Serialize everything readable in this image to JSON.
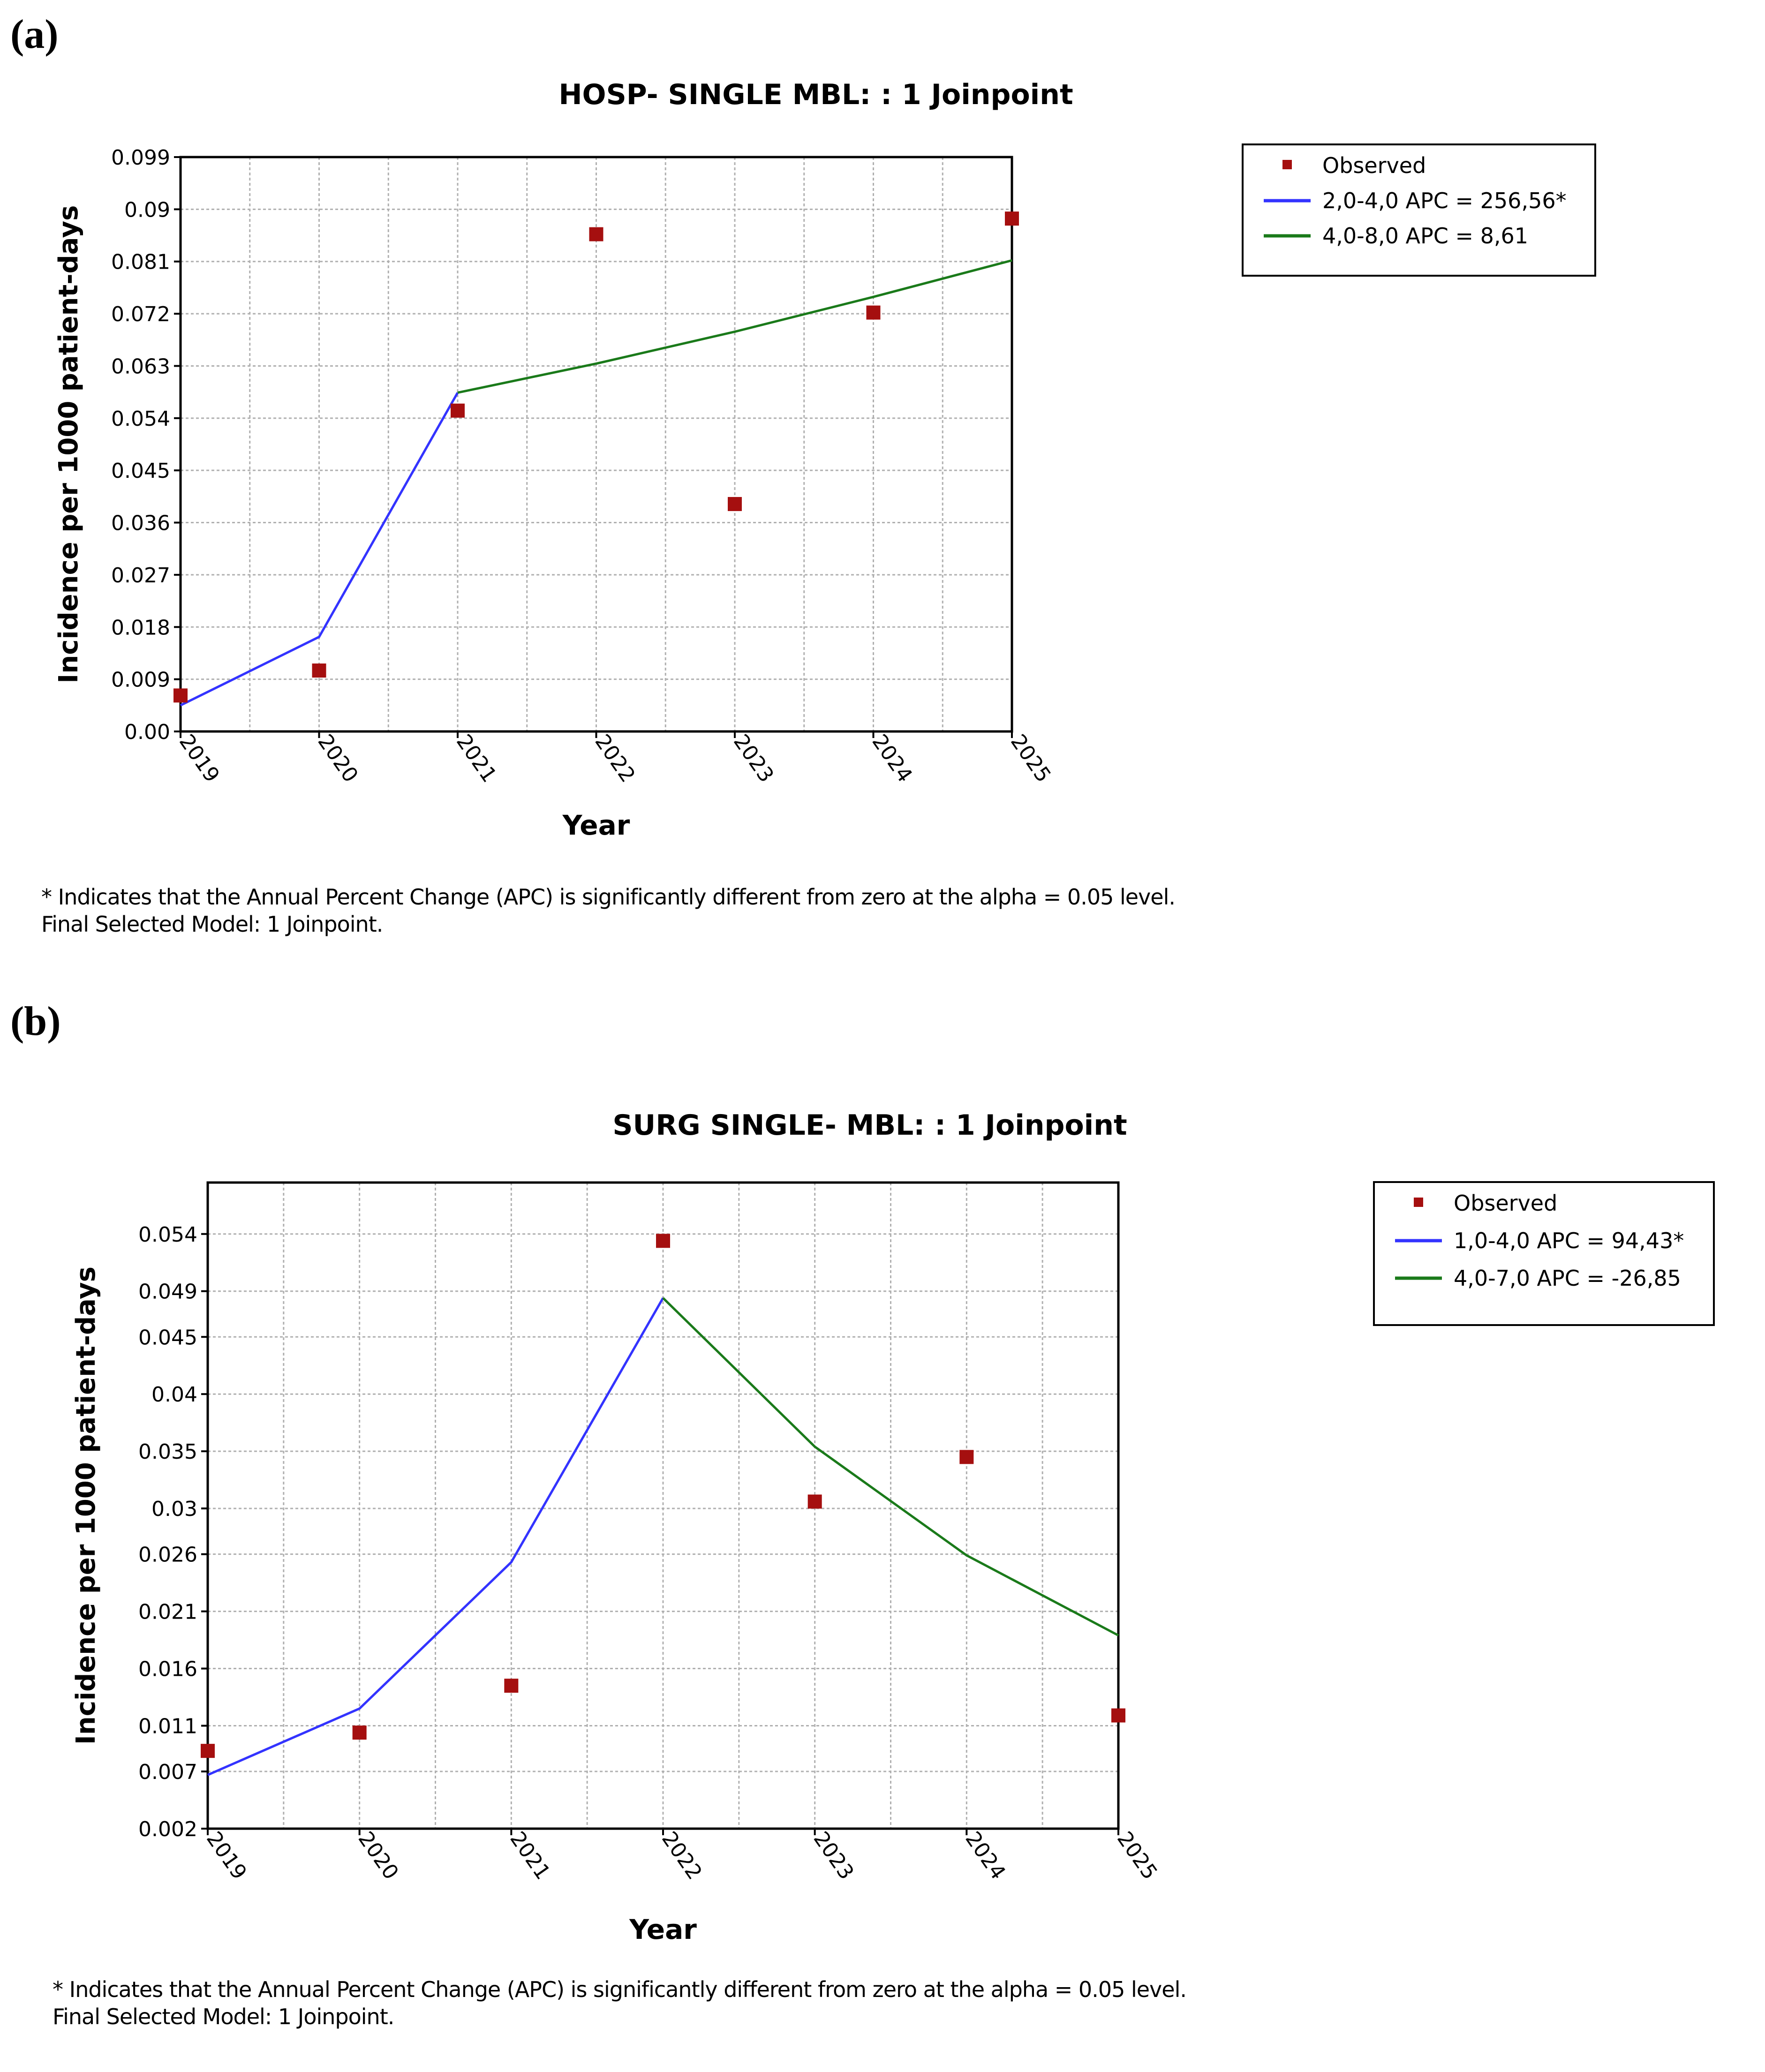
{
  "panels": [
    {
      "label": "(a)"
    },
    {
      "label": "(b)"
    }
  ],
  "chart_data": [
    {
      "type": "line",
      "title": "HOSP-  SINGLE MBL: : 1 Joinpoint",
      "xlabel": "Year",
      "ylabel": "Incidence per 1000 patient-days",
      "categories": [
        "2019",
        "2020",
        "2021",
        "2022",
        "2023",
        "2024",
        "2025"
      ],
      "yticks": [
        "0.00",
        "0.009",
        "0.018",
        "0.027",
        "0.036",
        "0.045",
        "0.054",
        "0.063",
        "0.072",
        "0.081",
        "0.09",
        "0.099"
      ],
      "ylim": [
        0,
        0.099
      ],
      "grid": true,
      "legend_position": "right",
      "series": [
        {
          "name": "Observed",
          "kind": "points",
          "color": "#a50f0f",
          "x": [
            0,
            1,
            2,
            3,
            4,
            5,
            6
          ],
          "y": [
            0.0062,
            0.0105,
            0.0553,
            0.0857,
            0.0392,
            0.0722,
            0.0884
          ]
        },
        {
          "name": "2,0-4,0 APC  = 256,56*",
          "kind": "line",
          "color": "#3333ff",
          "x": [
            0,
            1,
            2
          ],
          "y": [
            0.0045,
            0.0163,
            0.0584
          ]
        },
        {
          "name": "4,0-8,0 APC  =   8,61",
          "kind": "line",
          "color": "#1a7a1a",
          "x": [
            2,
            3,
            4,
            5,
            6
          ],
          "y": [
            0.0584,
            0.0634,
            0.0689,
            0.0749,
            0.0812
          ]
        }
      ]
    },
    {
      "type": "line",
      "title": "SURG  SINGLE- MBL: : 1 Joinpoint",
      "xlabel": "Year",
      "ylabel": "Incidence per 1000 patient-days",
      "categories": [
        "2019",
        "2020",
        "2021",
        "2022",
        "2023",
        "2024",
        "2025"
      ],
      "yticks": [
        "0.002",
        "0.007",
        "0.011",
        "0.016",
        "0.021",
        "0.026",
        "0.03",
        "0.035",
        "0.04",
        "0.045",
        "0.049",
        "0.054"
      ],
      "ylim": [
        0.002,
        0.0585
      ],
      "grid": true,
      "legend_position": "right",
      "series": [
        {
          "name": "Observed",
          "kind": "points",
          "color": "#a50f0f",
          "x": [
            0,
            1,
            2,
            3,
            4,
            5,
            6
          ],
          "y": [
            0.0088,
            0.0104,
            0.0145,
            0.0534,
            0.0306,
            0.0345,
            0.0119
          ]
        },
        {
          "name": "1,0-4,0 APC  =  94,43*",
          "kind": "line",
          "color": "#3333ff",
          "x": [
            0,
            1,
            2,
            3
          ],
          "y": [
            0.0067,
            0.0125,
            0.0253,
            0.0484
          ]
        },
        {
          "name": "4,0-7,0 APC  =  -26,85",
          "kind": "line",
          "color": "#1a7a1a",
          "x": [
            3,
            4,
            5,
            6
          ],
          "y": [
            0.0484,
            0.0354,
            0.0259,
            0.0189
          ]
        }
      ]
    }
  ],
  "footnotes": [
    {
      "line1": "* Indicates that the Annual Percent Change (APC) is significantly different from zero at the alpha = 0.05 level.",
      "line2": "Final Selected Model: 1 Joinpoint."
    },
    {
      "line1": "* Indicates that the Annual Percent Change (APC) is significantly different from zero at the alpha = 0.05 level.",
      "line2": "Final Selected Model: 1 Joinpoint."
    }
  ]
}
